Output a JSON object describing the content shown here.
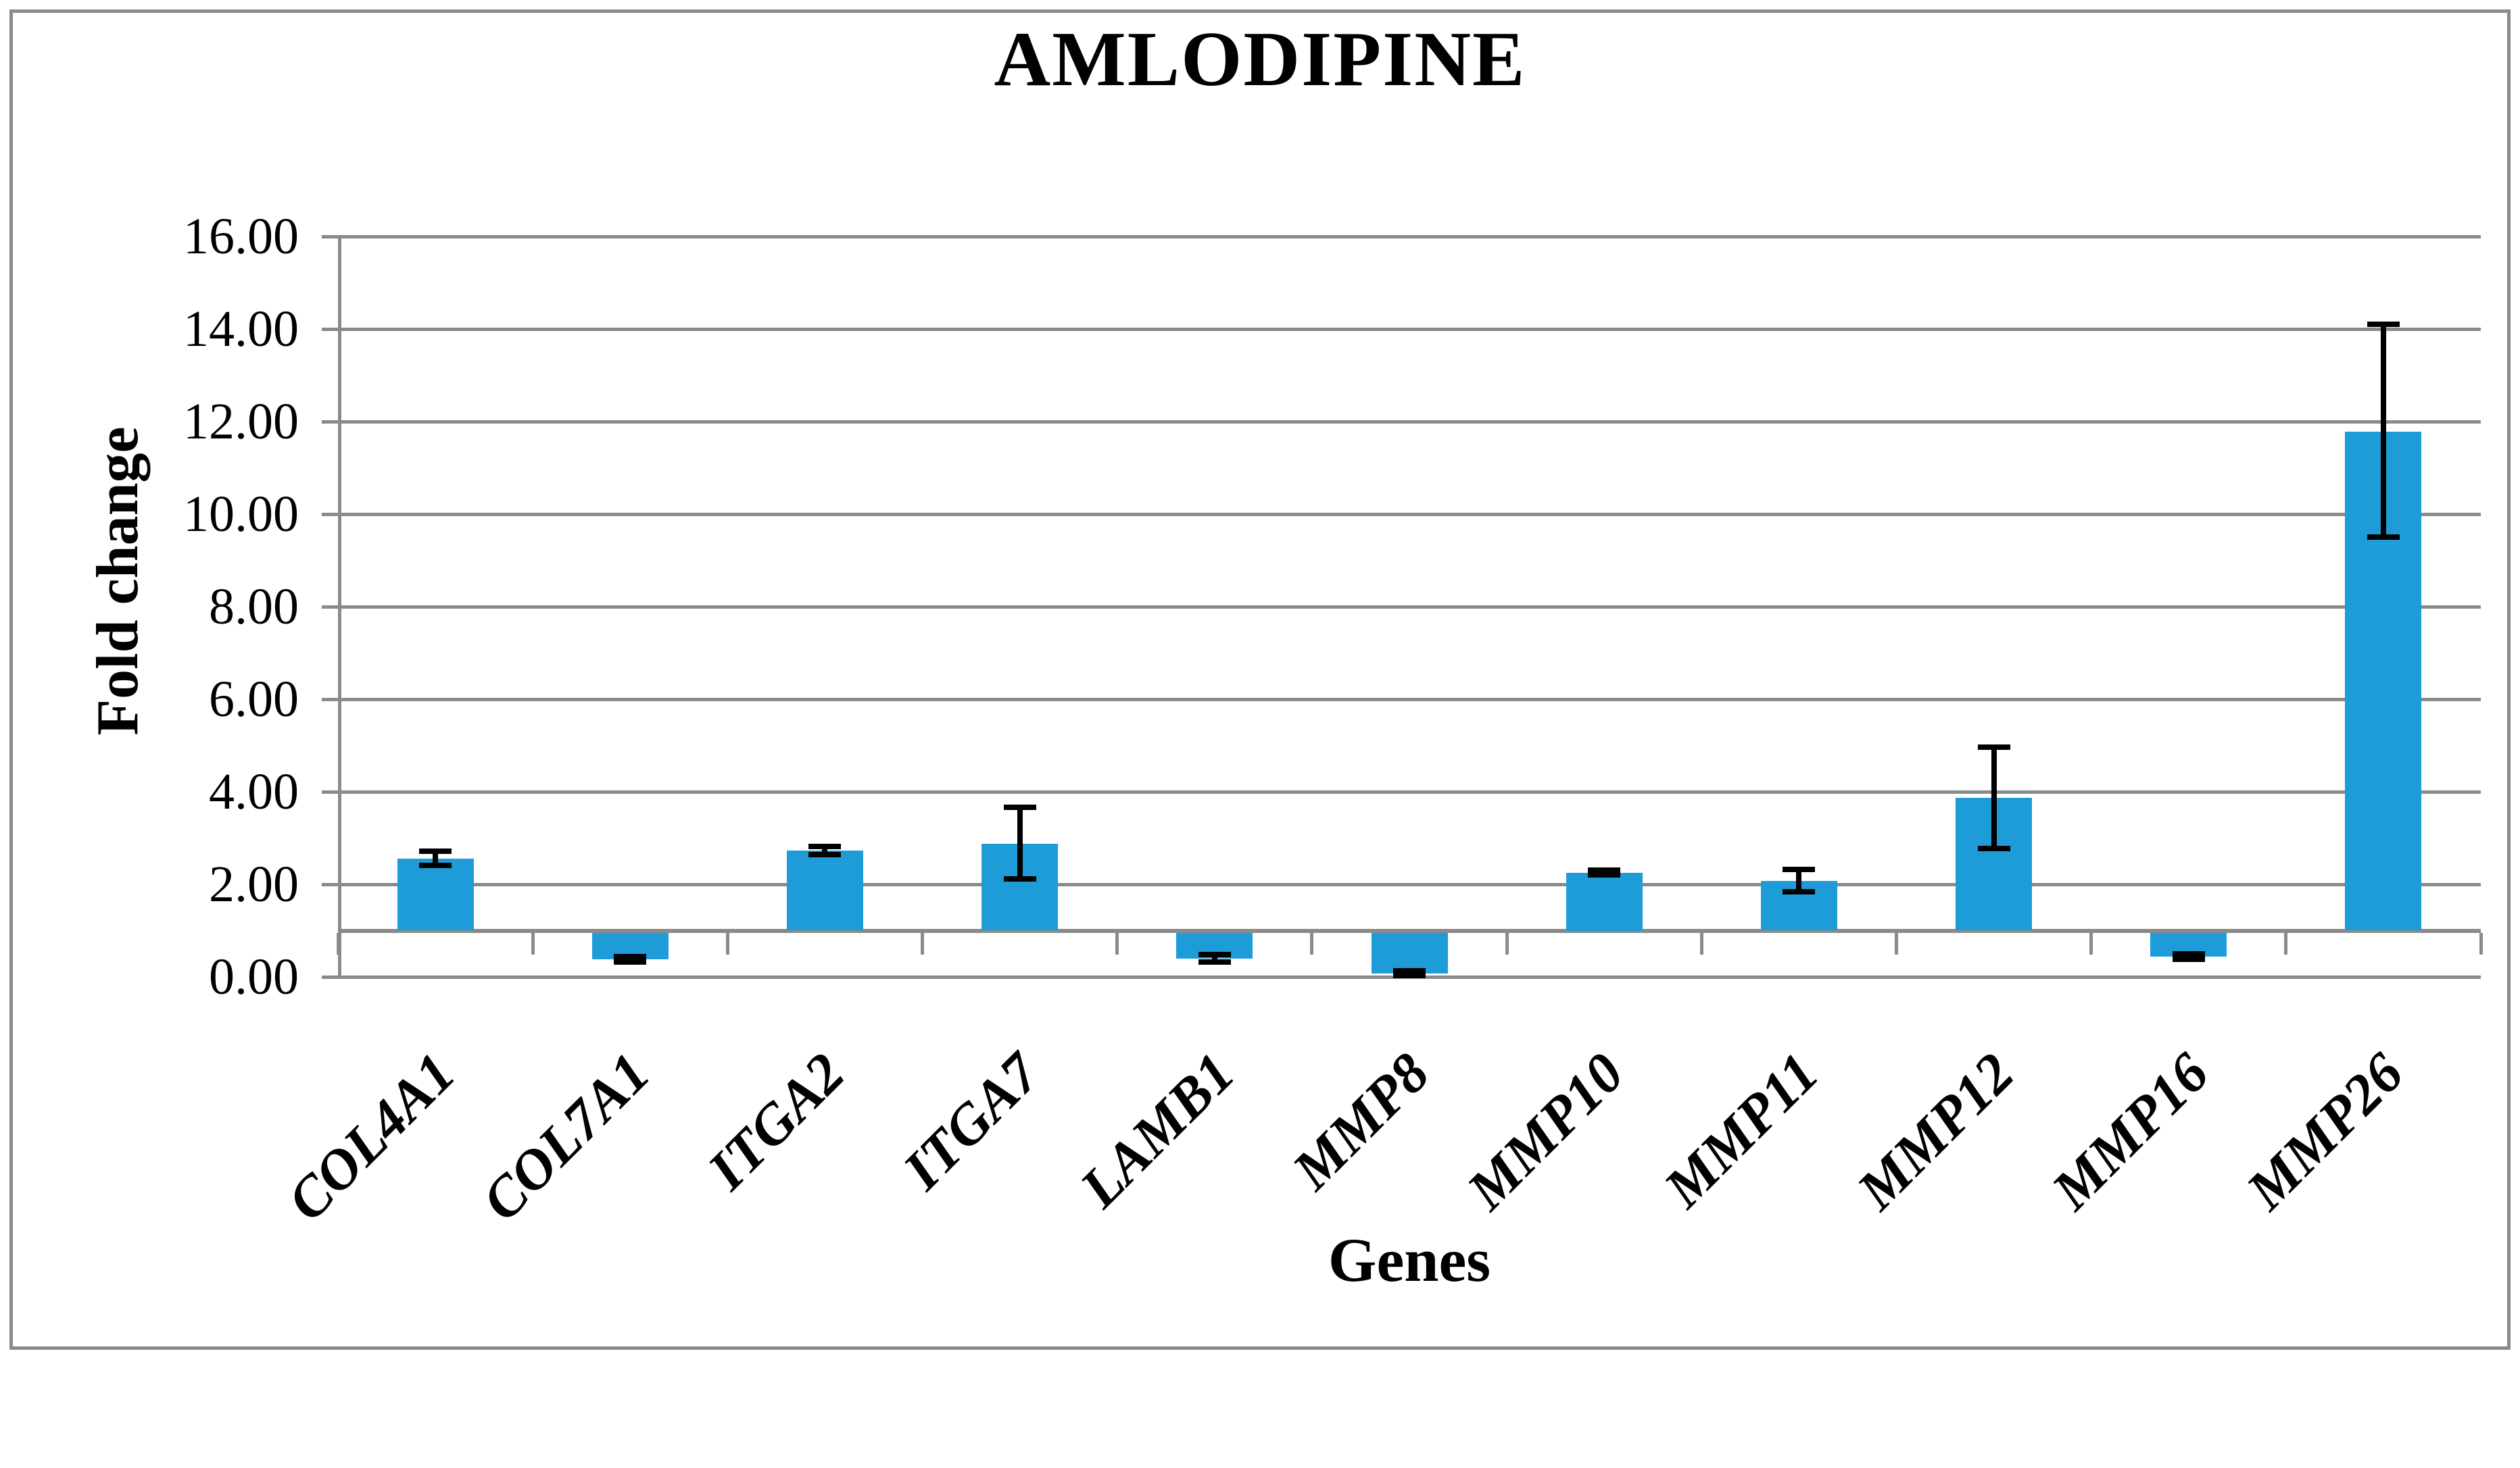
{
  "title": "AMLODIPINE",
  "y_axis": {
    "label": "Fold change",
    "tick_labels": [
      "0.00",
      "2.00",
      "4.00",
      "6.00",
      "8.00",
      "10.00",
      "12.00",
      "14.00",
      "16.00"
    ]
  },
  "x_axis": {
    "label": "Genes"
  },
  "colors": {
    "bar": "#1e9cd8",
    "gridline": "#8a8a8a",
    "error_bar": "#000000",
    "frame": "#8a8a8a",
    "background": "#ffffff"
  },
  "chart_data": {
    "type": "bar",
    "title": "AMLODIPINE",
    "xlabel": "Genes",
    "ylabel": "Fold change",
    "ylim": [
      0,
      16
    ],
    "ytick_step": 2,
    "grid": true,
    "legend": false,
    "baseline": 1.0,
    "baseline_note": "category axis crosses value axis at fold change = 1.00; bars below 1 hang downward",
    "categories": [
      "COL4A1",
      "COL7A1",
      "ITGA2",
      "ITGA7",
      "LAMB1",
      "MMP8",
      "MMP10",
      "MMP11",
      "MMP12",
      "MMP16",
      "MMP26"
    ],
    "values": [
      2.56,
      0.38,
      2.73,
      2.88,
      0.4,
      0.07,
      2.25,
      2.07,
      3.87,
      0.44,
      11.78
    ],
    "error_low": [
      2.41,
      0.32,
      2.64,
      2.12,
      0.32,
      0.03,
      2.2,
      1.84,
      2.78,
      0.38,
      9.51
    ],
    "error_high": [
      2.72,
      0.44,
      2.82,
      3.66,
      0.48,
      0.13,
      2.3,
      2.32,
      4.96,
      0.5,
      14.1
    ]
  }
}
